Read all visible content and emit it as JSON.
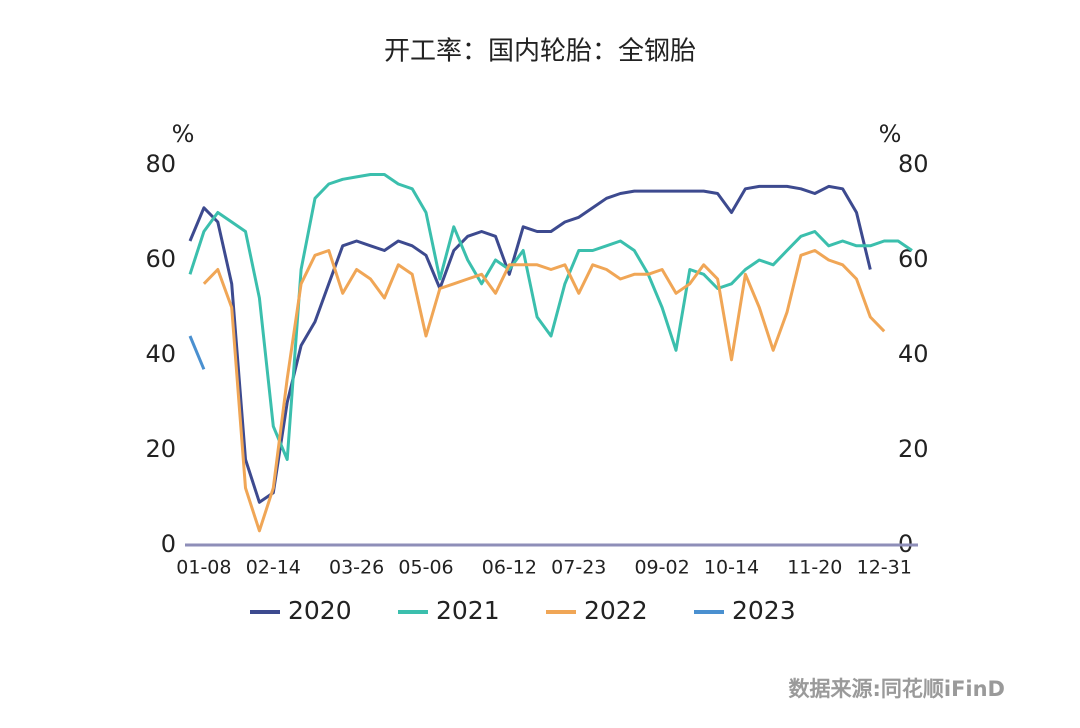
{
  "chart_data": {
    "type": "line",
    "title": "开工率：国内轮胎：全钢胎",
    "y_label": "%",
    "y2_label": "%",
    "source": "数据来源:同花顺iFinD",
    "categories": [
      null,
      "01-08",
      null,
      null,
      null,
      null,
      "02-14",
      null,
      null,
      null,
      null,
      null,
      "03-26",
      null,
      null,
      null,
      null,
      "05-06",
      null,
      null,
      null,
      null,
      null,
      "06-12",
      null,
      null,
      null,
      null,
      "07-23",
      null,
      null,
      null,
      null,
      null,
      "09-02",
      null,
      null,
      null,
      null,
      "10-14",
      null,
      null,
      null,
      null,
      null,
      "11-20",
      null,
      null,
      null,
      null,
      "12-31",
      null,
      null
    ],
    "series": [
      {
        "name": "2020",
        "color": "#3d4a8f",
        "values": [
          64,
          71,
          68,
          55,
          18,
          9,
          11,
          30,
          42,
          47,
          55,
          63,
          64,
          63,
          62,
          64,
          63,
          61,
          54,
          62,
          65,
          66,
          65,
          57,
          67,
          66,
          66,
          68,
          69,
          71,
          73,
          74,
          74.5,
          74.5,
          74.5,
          74.5,
          74.5,
          74.5,
          74,
          70,
          75,
          75.5,
          75.5,
          75.5,
          75,
          74,
          75.5,
          75,
          70,
          58,
          null,
          null,
          null
        ]
      },
      {
        "name": "2021",
        "color": "#3bbfad",
        "values": [
          57,
          66,
          70,
          68,
          66,
          52,
          25,
          18,
          58,
          73,
          76,
          77,
          77.5,
          78,
          78,
          76,
          75,
          70,
          56,
          67,
          60,
          55,
          60,
          58,
          62,
          48,
          44,
          55,
          62,
          62,
          63,
          64,
          62,
          57,
          50,
          41,
          58,
          57,
          54,
          55,
          58,
          60,
          59,
          62,
          65,
          66,
          63,
          64,
          63,
          63,
          64,
          64,
          62
        ]
      },
      {
        "name": "2022",
        "color": "#f0a656",
        "values": [
          null,
          55,
          58,
          50,
          12,
          3,
          12,
          35,
          55,
          61,
          62,
          53,
          58,
          56,
          52,
          59,
          57,
          44,
          54,
          55,
          56,
          57,
          53,
          59,
          59,
          59,
          58,
          59,
          53,
          59,
          58,
          56,
          57,
          57,
          58,
          53,
          55,
          59,
          56,
          39,
          57,
          50,
          41,
          49,
          61,
          62,
          60,
          59,
          56,
          48,
          45,
          null,
          null
        ]
      },
      {
        "name": "2023",
        "color": "#4a90d0",
        "values": [
          44,
          37,
          null,
          null,
          null,
          null,
          null,
          null,
          null,
          null,
          null,
          null,
          null,
          null,
          null,
          null,
          null,
          null,
          null,
          null,
          null,
          null,
          null,
          null,
          null,
          null,
          null,
          null,
          null,
          null,
          null,
          null,
          null,
          null,
          null,
          null,
          null,
          null,
          null,
          null,
          null,
          null,
          null,
          null,
          null,
          null,
          null,
          null,
          null,
          null,
          null,
          null,
          null
        ]
      }
    ],
    "ylim": [
      0,
      80
    ],
    "yticks": [
      0,
      20,
      40,
      60,
      80
    ],
    "y2lim": [
      0,
      80
    ],
    "y2ticks": [
      0,
      20,
      40,
      60,
      80
    ],
    "axis_color": "#8e8eb8"
  }
}
